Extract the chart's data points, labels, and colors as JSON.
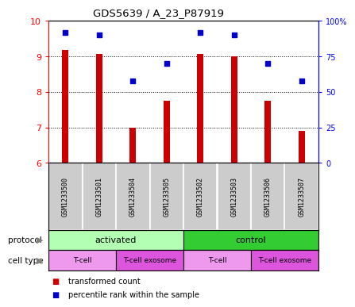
{
  "title": "GDS5639 / A_23_P87919",
  "samples": [
    "GSM1233500",
    "GSM1233501",
    "GSM1233504",
    "GSM1233505",
    "GSM1233502",
    "GSM1233503",
    "GSM1233506",
    "GSM1233507"
  ],
  "transformed_counts": [
    9.18,
    9.07,
    7.0,
    7.75,
    9.07,
    9.0,
    7.75,
    6.9
  ],
  "percentile_ranks": [
    92,
    90,
    58,
    70,
    92,
    90,
    70,
    58
  ],
  "bar_bottom": 6.0,
  "ylim_left": [
    6,
    10
  ],
  "ylim_right": [
    0,
    100
  ],
  "yticks_left": [
    6,
    7,
    8,
    9,
    10
  ],
  "yticks_right": [
    0,
    25,
    50,
    75,
    100
  ],
  "bar_color": "#cc0000",
  "dot_color": "#0000cc",
  "protocol_groups": [
    {
      "label": "activated",
      "start": 0,
      "end": 4,
      "color": "#b3ffb3"
    },
    {
      "label": "control",
      "start": 4,
      "end": 8,
      "color": "#33cc33"
    }
  ],
  "celltype_groups": [
    {
      "label": "T-cell",
      "start": 0,
      "end": 2,
      "color": "#ee99ee"
    },
    {
      "label": "T-cell exosome",
      "start": 2,
      "end": 4,
      "color": "#dd55dd"
    },
    {
      "label": "T-cell",
      "start": 4,
      "end": 6,
      "color": "#ee99ee"
    },
    {
      "label": "T-cell exosome",
      "start": 6,
      "end": 8,
      "color": "#dd55dd"
    }
  ],
  "legend_bar_label": "transformed count",
  "legend_dot_label": "percentile rank within the sample",
  "protocol_label": "protocol",
  "celltype_label": "cell type",
  "grid_color": "#000000",
  "background_color": "#ffffff",
  "sample_bg_color": "#cccccc",
  "bar_width": 0.18
}
